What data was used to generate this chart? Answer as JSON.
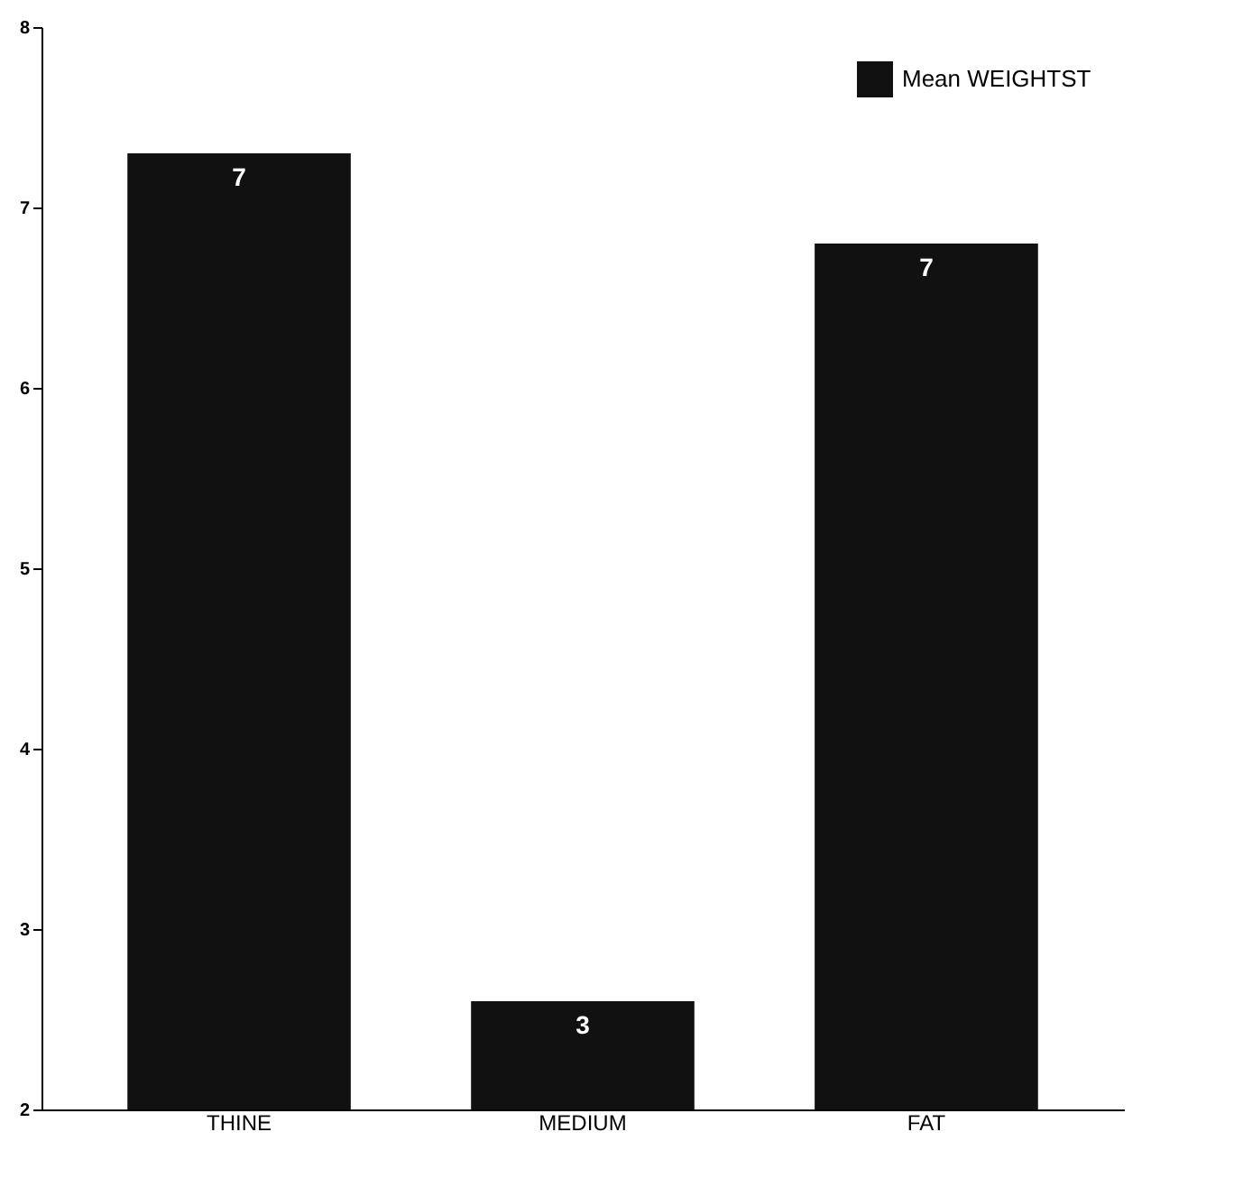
{
  "chart_data": {
    "type": "bar",
    "categories": [
      "THINE",
      "MEDIUM",
      "FAT"
    ],
    "series": [
      {
        "name": "Mean WEIGHTST",
        "color": "#111111",
        "values": [
          7.3,
          2.6,
          6.8
        ]
      }
    ],
    "value_labels": [
      "7",
      "3",
      "7"
    ],
    "ylim": [
      2,
      8
    ],
    "yticks": [
      2,
      3,
      4,
      5,
      6,
      7,
      8
    ],
    "legend": "top right"
  }
}
